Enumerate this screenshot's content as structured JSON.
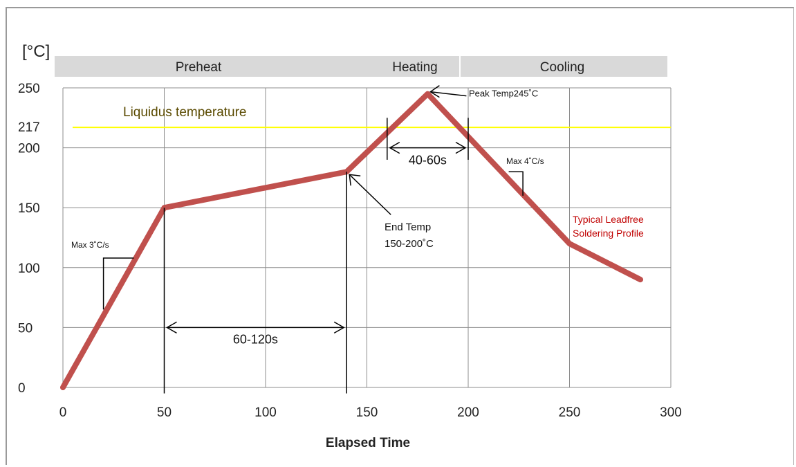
{
  "chart_data": {
    "type": "line",
    "title": "",
    "xlabel": "Elapsed Time",
    "ylabel": "[°C]",
    "xlim": [
      0,
      300
    ],
    "ylim": [
      0,
      250
    ],
    "x_ticks": [
      0,
      50,
      100,
      150,
      200,
      250,
      300
    ],
    "y_ticks": [
      0,
      50,
      100,
      150,
      200,
      250
    ],
    "y_extra_tick": 217,
    "grid": true,
    "series": [
      {
        "name": "Typical Leadfree Soldering Profile",
        "color": "#c0504d",
        "points": [
          [
            0,
            0
          ],
          [
            50,
            150
          ],
          [
            140,
            180
          ],
          [
            180,
            245
          ],
          [
            250,
            120
          ],
          [
            285,
            90
          ]
        ]
      }
    ],
    "liquidus": {
      "value": 217,
      "label": "Liquidus temperature",
      "color": "#ffff00",
      "label_color": "#5a4a00"
    },
    "phases": [
      {
        "label": "Preheat",
        "from": 0,
        "to": 200
      },
      {
        "label": "Heating",
        "from": 160,
        "to": 200
      },
      {
        "label": "Cooling",
        "from": 200,
        "to": 300
      }
    ],
    "annotations": {
      "peak": "Peak Temp245˚C",
      "end_temp_line1": "End Temp",
      "end_temp_line2": "150-200˚C",
      "span_40_60": "40-60s",
      "span_60_120": "60-120s",
      "max_up": "Max 3˚C/s",
      "max_down": "Max 4˚C/s",
      "profile_line1": "Typical Leadfree",
      "profile_line2": "Soldering Profile"
    }
  }
}
